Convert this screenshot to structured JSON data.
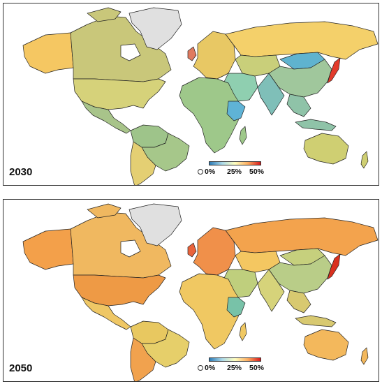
{
  "panels": [
    {
      "year": "2030",
      "colors": {
        "north_america_canada": "#c9c77a",
        "alaska": "#f5c762",
        "usa": "#d6d27a",
        "mexico": "#a8c48a",
        "greenland": "#e0e0e0",
        "south_america": "#9ec48a",
        "brazil": "#a6c78a",
        "argentina": "#e4cf73",
        "europe": "#e8c864",
        "uk": "#e07a5f",
        "russia": "#f4d06a",
        "kazakhstan": "#c9cf7a",
        "mongolia": "#5fb3cf",
        "china": "#a0c79c",
        "india": "#7fbfb8",
        "japan": "#e23b2b",
        "middle_east": "#8fcfb0",
        "africa": "#9ec88a",
        "east_africa": "#5fb3d6",
        "southeast_asia": "#8fc3a8",
        "australia": "#cfcf72"
      },
      "legend": {
        "ticks": [
          "0%",
          "25%",
          "50%"
        ]
      }
    },
    {
      "year": "2050",
      "colors": {
        "north_america_canada": "#f0b860",
        "alaska": "#f3a04a",
        "usa": "#ee9a45",
        "mexico": "#efc765",
        "greenland": "#e0e0e0",
        "south_america": "#e8c860",
        "brazil": "#e6cf6a",
        "argentina": "#f1a24e",
        "europe": "#f0904a",
        "uk": "#e9633b",
        "russia": "#f3a34d",
        "kazakhstan": "#f4c761",
        "mongolia": "#c6d07d",
        "china": "#b9cd88",
        "india": "#d6d37a",
        "japan": "#d9301f",
        "middle_east": "#bfcf7d",
        "africa": "#f0c862",
        "east_africa": "#78c2a8",
        "southeast_asia": "#d8c970",
        "australia": "#f3b85c"
      },
      "legend": {
        "ticks": [
          "0%",
          "25%",
          "50%"
        ]
      }
    }
  ]
}
